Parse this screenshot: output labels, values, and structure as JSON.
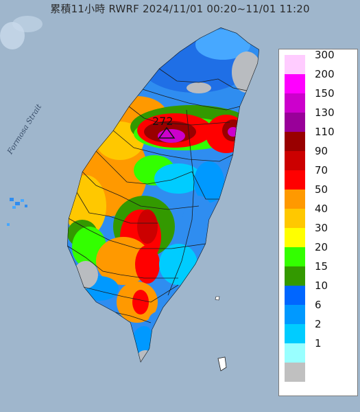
{
  "title": "累積11小時 RWRF 2024/11/01 00:20~11/01 11:20",
  "map_labels": {
    "strait": "Formosa Strait",
    "peak_value": "272"
  },
  "legend": [
    {
      "label": "300",
      "color": "#ffccff"
    },
    {
      "label": "200",
      "color": "#ff00ff"
    },
    {
      "label": "150",
      "color": "#cc00cc"
    },
    {
      "label": "130",
      "color": "#990099"
    },
    {
      "label": "110",
      "color": "#990000"
    },
    {
      "label": "90",
      "color": "#cc0000"
    },
    {
      "label": "70",
      "color": "#ff0000"
    },
    {
      "label": "50",
      "color": "#ff9900"
    },
    {
      "label": "40",
      "color": "#ffc800"
    },
    {
      "label": "30",
      "color": "#ffff00"
    },
    {
      "label": "20",
      "color": "#33ff00"
    },
    {
      "label": "15",
      "color": "#339900"
    },
    {
      "label": "10",
      "color": "#0066ff"
    },
    {
      "label": "6",
      "color": "#0099ff"
    },
    {
      "label": "2",
      "color": "#00ccff"
    },
    {
      "label": "1",
      "color": "#99ffff"
    },
    {
      "label": "",
      "color": "#c0c0c0"
    }
  ],
  "colors": {
    "sea": "#9fb6cc",
    "land_base": "#2f8df0"
  }
}
